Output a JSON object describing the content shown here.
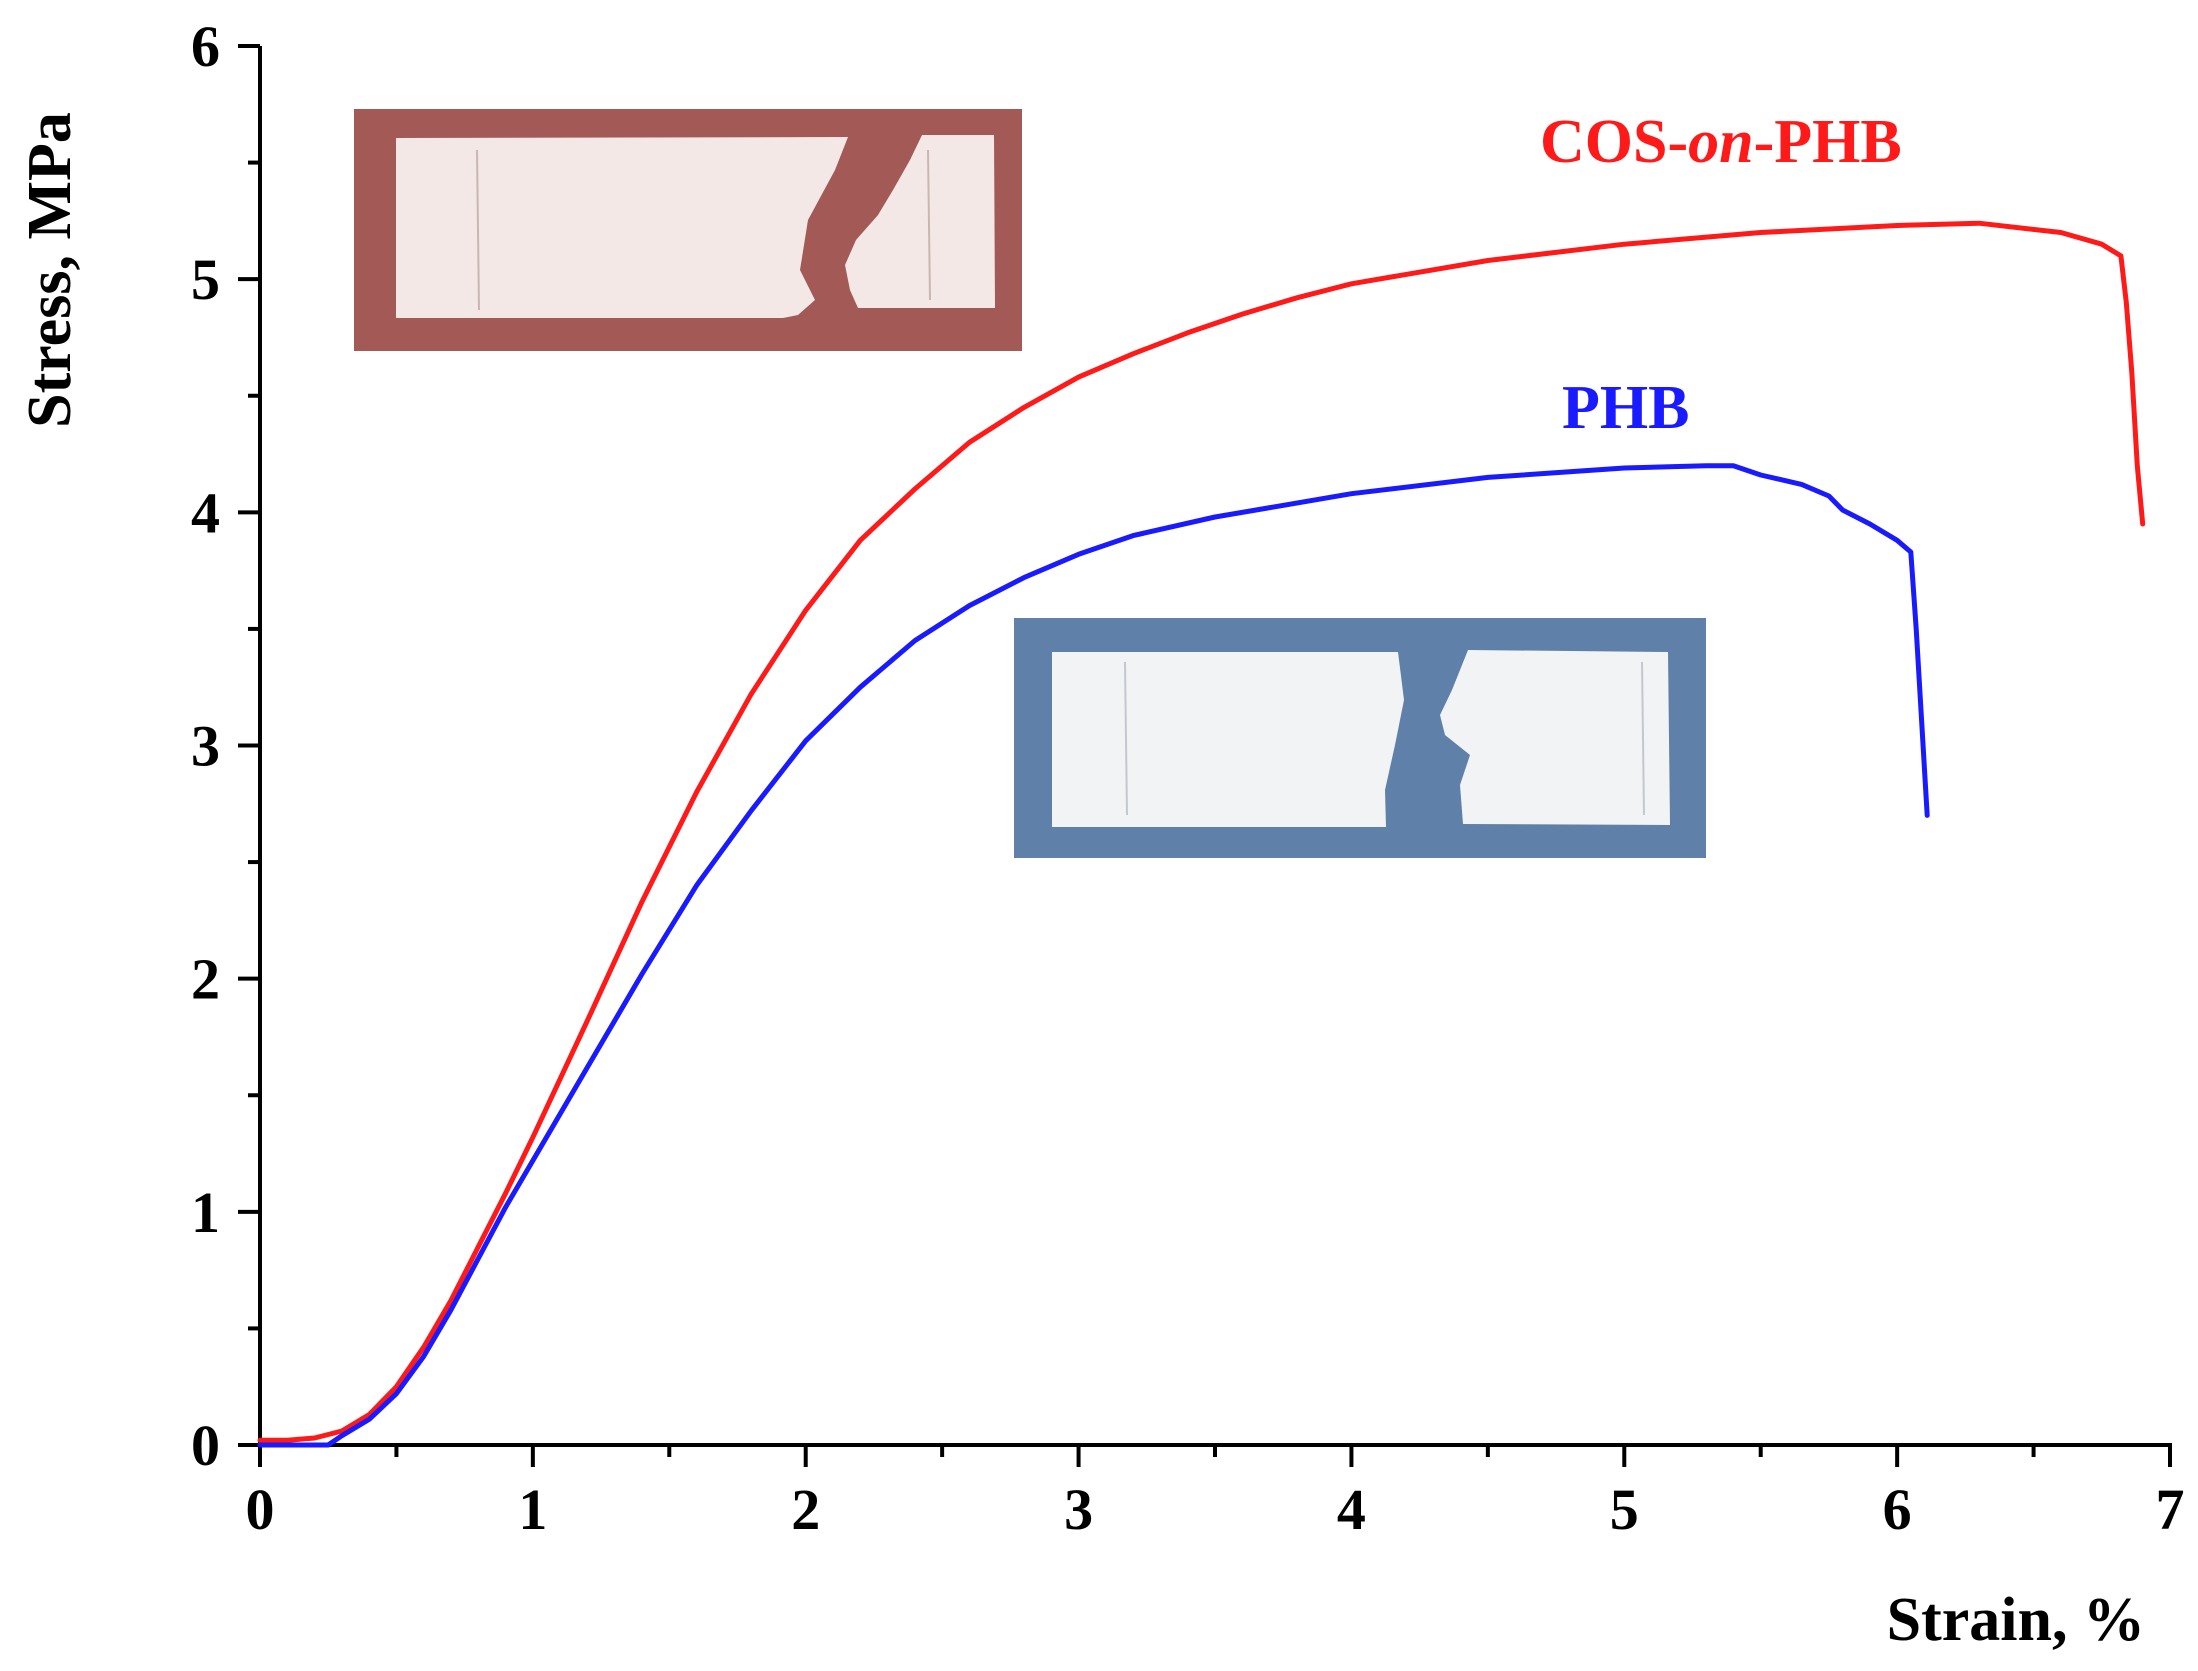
{
  "chart_data": {
    "type": "line",
    "xlabel": "Strain, %",
    "ylabel": "Stress, MPa",
    "xlim": [
      0,
      7
    ],
    "ylim": [
      0,
      6
    ],
    "x_ticks": [
      "0",
      "1",
      "2",
      "3",
      "4",
      "5",
      "6",
      "7"
    ],
    "y_ticks": [
      "0",
      "1",
      "2",
      "3",
      "4",
      "5",
      "6"
    ],
    "grid": false,
    "series": [
      {
        "name": "COS-on-PHB",
        "name_parts": [
          "COS-",
          "on",
          "-PHB"
        ],
        "color": "#ff1a1a",
        "points": [
          [
            0.0,
            0.02
          ],
          [
            0.1,
            0.02
          ],
          [
            0.2,
            0.03
          ],
          [
            0.3,
            0.06
          ],
          [
            0.4,
            0.13
          ],
          [
            0.5,
            0.25
          ],
          [
            0.6,
            0.42
          ],
          [
            0.7,
            0.62
          ],
          [
            0.8,
            0.85
          ],
          [
            0.9,
            1.08
          ],
          [
            1.0,
            1.32
          ],
          [
            1.2,
            1.82
          ],
          [
            1.4,
            2.33
          ],
          [
            1.6,
            2.8
          ],
          [
            1.8,
            3.22
          ],
          [
            2.0,
            3.58
          ],
          [
            2.2,
            3.88
          ],
          [
            2.4,
            4.1
          ],
          [
            2.6,
            4.3
          ],
          [
            2.8,
            4.45
          ],
          [
            3.0,
            4.58
          ],
          [
            3.2,
            4.68
          ],
          [
            3.4,
            4.77
          ],
          [
            3.6,
            4.85
          ],
          [
            3.8,
            4.92
          ],
          [
            4.0,
            4.98
          ],
          [
            4.5,
            5.08
          ],
          [
            5.0,
            5.15
          ],
          [
            5.5,
            5.2
          ],
          [
            6.0,
            5.23
          ],
          [
            6.3,
            5.24
          ],
          [
            6.6,
            5.2
          ],
          [
            6.75,
            5.15
          ],
          [
            6.82,
            5.1
          ],
          [
            6.84,
            4.9
          ],
          [
            6.86,
            4.6
          ],
          [
            6.88,
            4.2
          ],
          [
            6.9,
            3.95
          ]
        ]
      },
      {
        "name": "PHB",
        "color": "#1a1aff",
        "points": [
          [
            0.0,
            0.0
          ],
          [
            0.25,
            0.0
          ],
          [
            0.3,
            0.04
          ],
          [
            0.4,
            0.11
          ],
          [
            0.5,
            0.22
          ],
          [
            0.6,
            0.38
          ],
          [
            0.7,
            0.58
          ],
          [
            0.8,
            0.8
          ],
          [
            0.9,
            1.02
          ],
          [
            1.0,
            1.22
          ],
          [
            1.2,
            1.62
          ],
          [
            1.4,
            2.02
          ],
          [
            1.6,
            2.4
          ],
          [
            1.8,
            2.72
          ],
          [
            2.0,
            3.02
          ],
          [
            2.2,
            3.25
          ],
          [
            2.4,
            3.45
          ],
          [
            2.6,
            3.6
          ],
          [
            2.8,
            3.72
          ],
          [
            3.0,
            3.82
          ],
          [
            3.2,
            3.9
          ],
          [
            3.5,
            3.98
          ],
          [
            4.0,
            4.08
          ],
          [
            4.5,
            4.15
          ],
          [
            5.0,
            4.19
          ],
          [
            5.3,
            4.2
          ],
          [
            5.4,
            4.2
          ],
          [
            5.5,
            4.16
          ],
          [
            5.65,
            4.12
          ],
          [
            5.75,
            4.07
          ],
          [
            5.8,
            4.01
          ],
          [
            5.9,
            3.95
          ],
          [
            6.0,
            3.88
          ],
          [
            6.05,
            3.83
          ],
          [
            6.07,
            3.5
          ],
          [
            6.09,
            3.1
          ],
          [
            6.11,
            2.7
          ]
        ]
      }
    ],
    "insets": [
      {
        "name": "cos-on-phb-specimen-photo",
        "background": "#a35a57"
      },
      {
        "name": "phb-specimen-photo",
        "background": "#5f80a8"
      }
    ]
  }
}
